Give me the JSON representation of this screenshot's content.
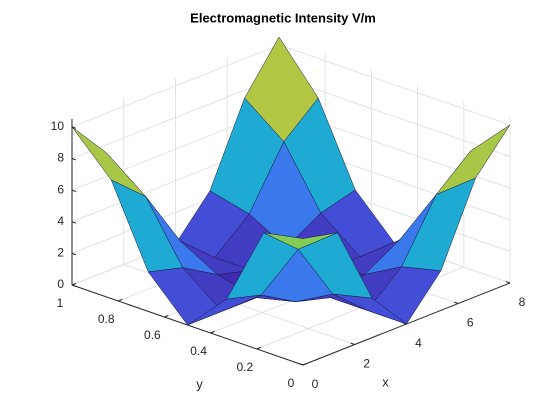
{
  "chart_data": {
    "type": "surface",
    "title": "Electromagnetic Intensity V/m",
    "x_label": "x",
    "y_label": "y",
    "x": [
      0,
      1.33,
      2.67,
      4,
      5.33,
      6.67,
      8
    ],
    "y": [
      0,
      0.17,
      0.33,
      0.5,
      0.67,
      0.83,
      1
    ],
    "z": [
      [
        8,
        7.5,
        2.5,
        0,
        2.5,
        7.5,
        10
      ],
      [
        7.5,
        5.6,
        1.9,
        0,
        1.9,
        5.6,
        7.5
      ],
      [
        2.5,
        1.9,
        0.6,
        0,
        0.6,
        1.9,
        2.5
      ],
      [
        0,
        0,
        0,
        0,
        0,
        0,
        0
      ],
      [
        2.5,
        1.9,
        0.6,
        0,
        0.6,
        1.9,
        2.5
      ],
      [
        7.5,
        5.6,
        1.9,
        0,
        1.9,
        5.6,
        7.5
      ],
      [
        10,
        7.5,
        2.5,
        0,
        2.5,
        7.5,
        10.5
      ]
    ],
    "xlim": [
      0,
      8
    ],
    "ylim": [
      0,
      1
    ],
    "zlim": [
      0,
      10.5
    ],
    "xticks": [
      0,
      2,
      4,
      6,
      8
    ],
    "yticks": [
      0,
      0.2,
      0.4,
      0.6,
      0.8,
      1
    ],
    "zticks": [
      0,
      2,
      4,
      6,
      8,
      10
    ],
    "grid": true,
    "colormap": "parula"
  }
}
